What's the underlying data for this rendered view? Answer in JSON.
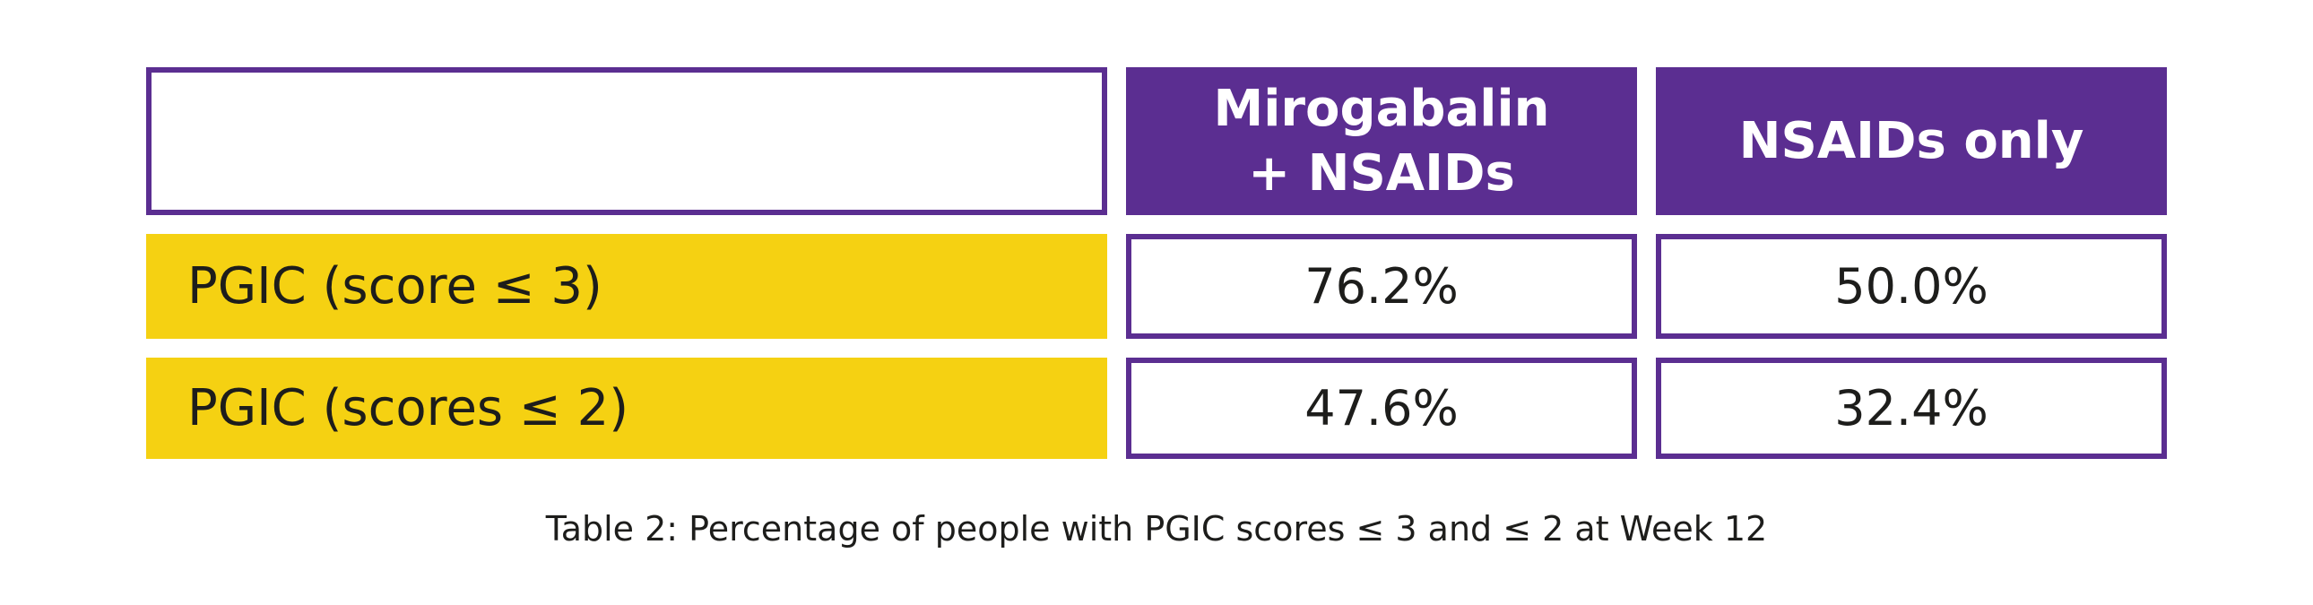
{
  "colors": {
    "purple_header_fill": "#5b2e91",
    "purple_cell_border": "#5b2e91",
    "yellow_row_fill": "#f5d112",
    "text_dark": "#1d1d1b",
    "header_text": "#ffffff",
    "background": "#ffffff"
  },
  "chart_data": {
    "type": "table",
    "caption": "Table 2: Percentage of people with PGIC scores ≤ 3 and ≤ 2 at Week 12",
    "columns": [
      "",
      "Mirogabalin + NSAIDs",
      "NSAIDs only"
    ],
    "column_header_lines": [
      [
        "Mirogabalin",
        "+ NSAIDs"
      ],
      [
        "NSAIDs only"
      ]
    ],
    "rows": [
      {
        "label": "PGIC (score ≤ 3)",
        "values": [
          76.2,
          50.0
        ],
        "display": [
          "76.2%",
          "50.0%"
        ]
      },
      {
        "label": "PGIC (scores ≤ 2)",
        "values": [
          47.6,
          32.4
        ],
        "display": [
          "47.6%",
          "32.4%"
        ]
      }
    ],
    "layout": {
      "grid": "off",
      "header_position": "top",
      "row_label_position": "left"
    }
  }
}
